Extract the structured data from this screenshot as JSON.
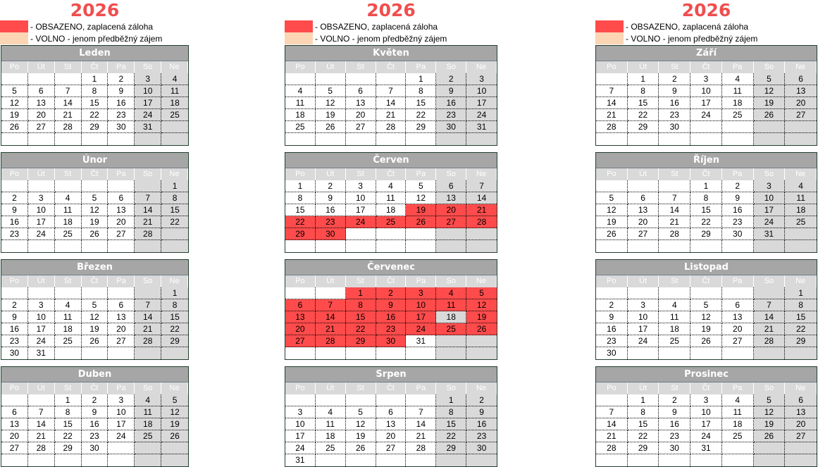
{
  "year": "2026",
  "legend": [
    {
      "label": "- OBSAZENO, zaplacená záloha",
      "color": "#ff4b4b"
    },
    {
      "label": "- VOLNO - jenom předběžný zájem",
      "color": "#fcd5b4"
    }
  ],
  "weekdays": [
    "Po",
    "Út",
    "St",
    "Čt",
    "Pa",
    "So",
    "Ne"
  ],
  "colors": {
    "header": "#a6a6a6",
    "weekend": "#d9d9d9",
    "booked": "#ff4b4b",
    "year": "#f04e4e"
  },
  "months": [
    {
      "name": "Leden",
      "start": 3,
      "days": 31,
      "booked": []
    },
    {
      "name": "Únor",
      "start": 6,
      "days": 28,
      "booked": []
    },
    {
      "name": "Březen",
      "start": 6,
      "days": 31,
      "booked": []
    },
    {
      "name": "Duben",
      "start": 2,
      "days": 30,
      "booked": []
    },
    {
      "name": "Květen",
      "start": 4,
      "days": 31,
      "booked": []
    },
    {
      "name": "Červen",
      "start": 0,
      "days": 30,
      "booked": [
        19,
        20,
        21,
        22,
        23,
        24,
        25,
        26,
        27,
        28,
        29,
        30
      ]
    },
    {
      "name": "Červenec",
      "start": 2,
      "days": 31,
      "booked": [
        1,
        2,
        3,
        4,
        5,
        6,
        7,
        8,
        9,
        10,
        11,
        12,
        13,
        14,
        15,
        16,
        17,
        19,
        20,
        21,
        22,
        23,
        24,
        25,
        26,
        27,
        28,
        29,
        30
      ]
    },
    {
      "name": "Srpen",
      "start": 5,
      "days": 31,
      "booked": []
    },
    {
      "name": "Září",
      "start": 1,
      "days": 30,
      "booked": []
    },
    {
      "name": "Říjen",
      "start": 3,
      "days": 31,
      "booked": []
    },
    {
      "name": "Listopad",
      "start": 6,
      "days": 30,
      "booked": []
    },
    {
      "name": "Prosinec",
      "start": 1,
      "days": 31,
      "booked": []
    }
  ]
}
